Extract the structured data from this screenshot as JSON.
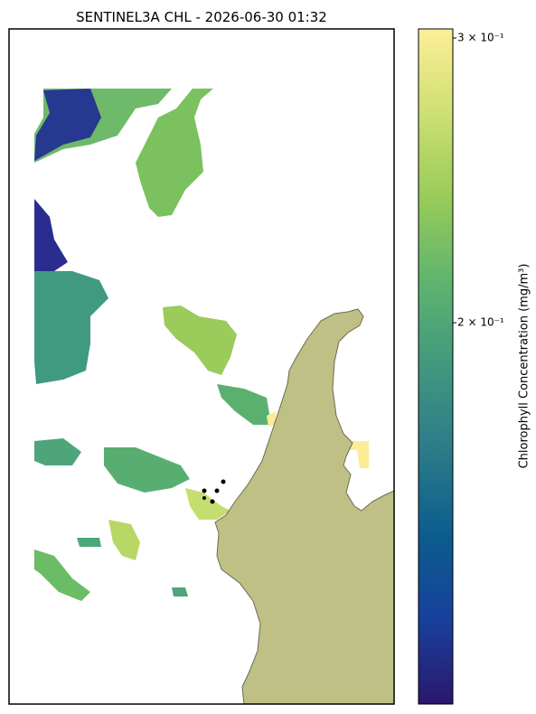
{
  "title": "SENTINEL3A CHL - 2026-06-30 01:32",
  "colorbar": {
    "label": "Chlorophyll Concentration (mg/m³)",
    "scale": "log",
    "lim": [
      0.1162,
      0.3039
    ],
    "ticks": [
      {
        "value": 0.3,
        "label": "3 × 10⁻¹"
      },
      {
        "value": 0.2,
        "label": "2 × 10⁻¹"
      }
    ],
    "colors": [
      "#2a186c",
      "#18409c",
      "#0b5d8e",
      "#2b7b89",
      "#40987f",
      "#5fb46e",
      "#98cb5a",
      "#cde072",
      "#fdee99"
    ]
  }
}
